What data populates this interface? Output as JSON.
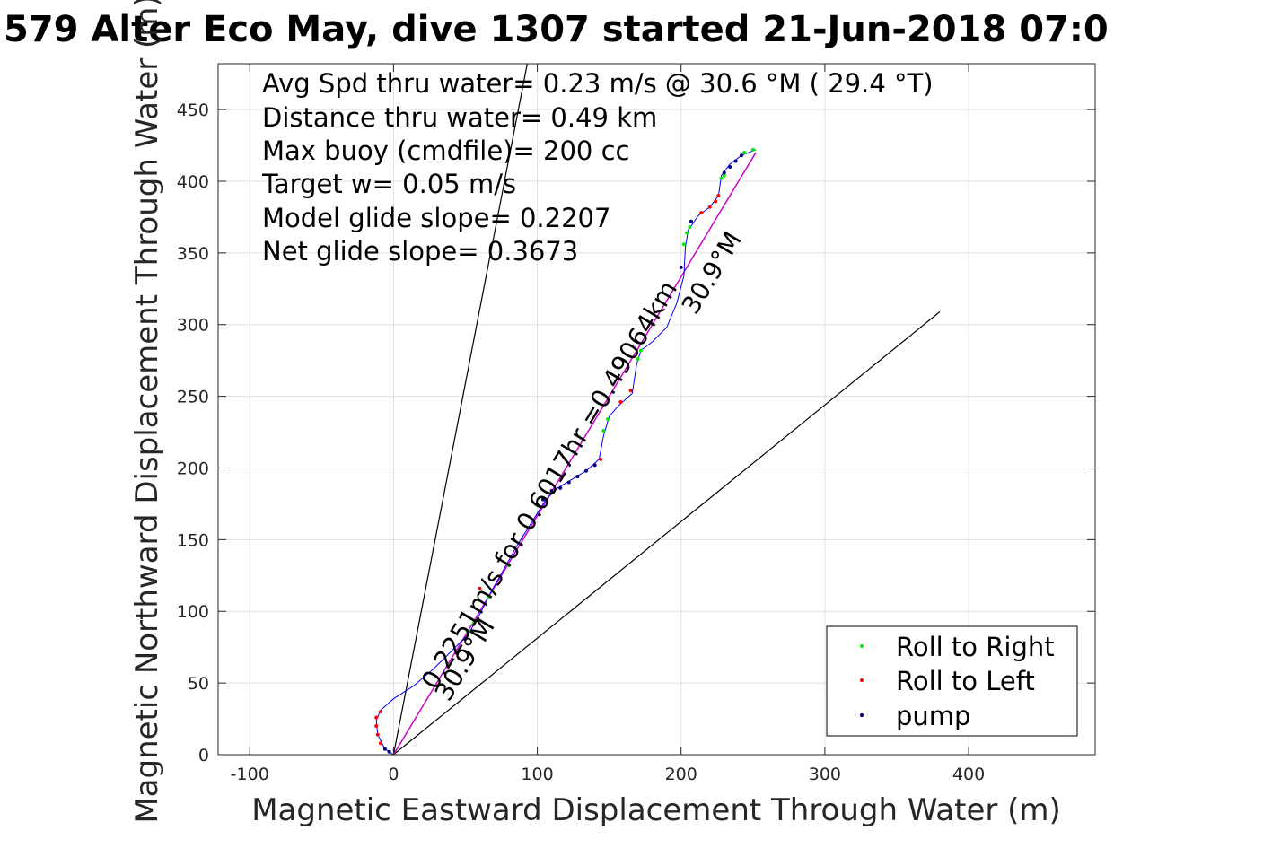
{
  "title": "579 Alter Eco May, dive 1307 started 21-Jun-2018 07:0",
  "info_lines": [
    "Avg Spd thru water=  0.23 m/s @  30.6 °M ( 29.4 °T)",
    "Distance thru water=  0.49 km",
    "Max buoy (cmdfile)= 200 cc",
    "Target w= 0.05 m/s",
    "Model glide slope= 0.2207",
    "Net glide slope= 0.3673"
  ],
  "annotations": {
    "track_label": "0.2251m/s for 0.6017hr =0.49064km",
    "heading_label_upper": "30.9°M",
    "heading_label_lower": "30.9°M"
  },
  "chart_data": {
    "type": "scatter",
    "xlabel": "Magnetic Eastward Displacement Through Water (m)",
    "ylabel": "Magnetic Northward Displacement Through Water (m)",
    "xlim": [
      -122,
      488
    ],
    "ylim": [
      0,
      482
    ],
    "xticks": [
      -100,
      0,
      100,
      200,
      300,
      400
    ],
    "yticks": [
      0,
      50,
      100,
      150,
      200,
      250,
      300,
      350,
      400,
      450
    ],
    "grid": true,
    "legend_position": "bottom-right",
    "legend": [
      "Roll to Right",
      "Roll to Left",
      "pump"
    ],
    "colors": {
      "track": "#0000ff",
      "roll_right": "#00ee00",
      "roll_left": "#ff0000",
      "pump": "#000080",
      "net_line": "#cc00cc",
      "glide_lines": "#000000"
    },
    "track": [
      [
        0,
        0
      ],
      [
        -6,
        4
      ],
      [
        -11,
        14
      ],
      [
        -12,
        24
      ],
      [
        -9,
        31
      ],
      [
        0,
        39
      ],
      [
        14,
        48
      ],
      [
        28,
        60
      ],
      [
        40,
        72
      ],
      [
        52,
        84
      ],
      [
        60,
        98
      ],
      [
        68,
        114
      ],
      [
        76,
        128
      ],
      [
        86,
        146
      ],
      [
        96,
        162
      ],
      [
        106,
        178
      ],
      [
        114,
        186
      ],
      [
        124,
        192
      ],
      [
        134,
        198
      ],
      [
        143,
        206
      ],
      [
        146,
        222
      ],
      [
        150,
        236
      ],
      [
        157,
        244
      ],
      [
        166,
        252
      ],
      [
        169,
        272
      ],
      [
        172,
        282
      ],
      [
        180,
        288
      ],
      [
        190,
        298
      ],
      [
        197,
        315
      ],
      [
        202,
        334
      ],
      [
        203,
        354
      ],
      [
        205,
        366
      ],
      [
        212,
        376
      ],
      [
        220,
        382
      ],
      [
        226,
        390
      ],
      [
        228,
        404
      ],
      [
        234,
        412
      ],
      [
        242,
        418
      ],
      [
        252,
        422
      ]
    ],
    "roll_right": [
      [
        52,
        86
      ],
      [
        56,
        92
      ],
      [
        66,
        110
      ],
      [
        80,
        132
      ],
      [
        146,
        226
      ],
      [
        149,
        234
      ],
      [
        170,
        276
      ],
      [
        172,
        282
      ],
      [
        202,
        356
      ],
      [
        204,
        364
      ],
      [
        206,
        368
      ],
      [
        228,
        402
      ],
      [
        230,
        404
      ],
      [
        244,
        420
      ],
      [
        250,
        422
      ]
    ],
    "roll_left": [
      [
        -9,
        8
      ],
      [
        -11,
        14
      ],
      [
        -12,
        20
      ],
      [
        -12,
        26
      ],
      [
        -9,
        30
      ],
      [
        60,
        116
      ],
      [
        140,
        202
      ],
      [
        144,
        206
      ],
      [
        158,
        246
      ],
      [
        165,
        254
      ],
      [
        214,
        378
      ],
      [
        220,
        382
      ],
      [
        224,
        386
      ],
      [
        226,
        390
      ]
    ],
    "pump": [
      [
        -6,
        4
      ],
      [
        -3,
        2
      ],
      [
        104,
        178
      ],
      [
        110,
        184
      ],
      [
        116,
        186
      ],
      [
        122,
        190
      ],
      [
        128,
        194
      ],
      [
        134,
        198
      ],
      [
        140,
        202
      ],
      [
        200,
        340
      ],
      [
        207,
        372
      ],
      [
        230,
        406
      ],
      [
        234,
        410
      ],
      [
        238,
        414
      ],
      [
        242,
        418
      ]
    ],
    "net_line": [
      [
        0,
        0
      ],
      [
        252,
        420
      ]
    ],
    "glide_lines": [
      [
        [
          0,
          0
        ],
        [
          93,
          482
        ]
      ],
      [
        [
          0,
          0
        ],
        [
          380,
          309
        ]
      ]
    ]
  }
}
